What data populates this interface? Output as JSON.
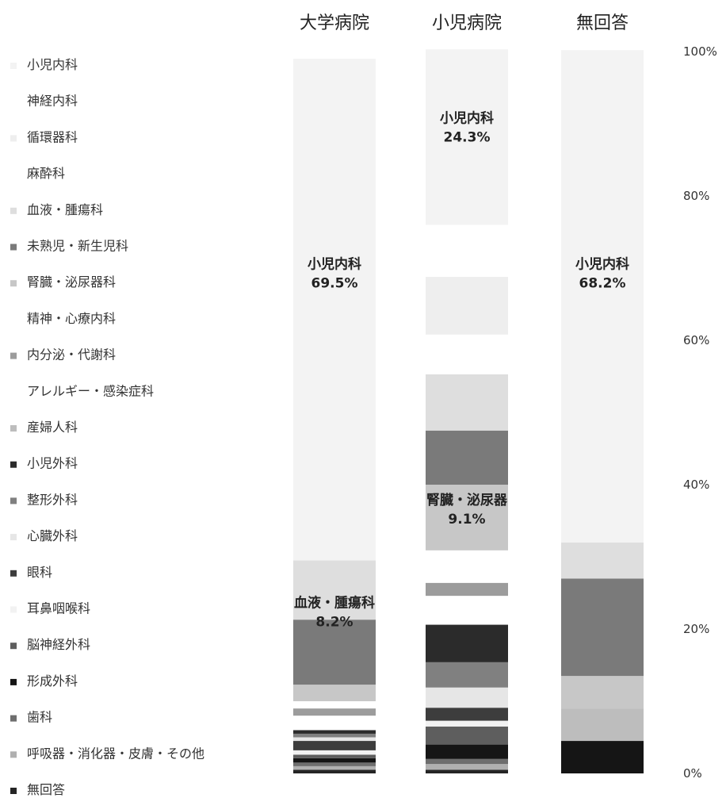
{
  "chart_data": {
    "type": "bar",
    "stacked": true,
    "categories": [
      "大学病院",
      "小児病院",
      "無回答"
    ],
    "series": [
      {
        "name": "小児内科",
        "color": "#f3f3f3",
        "values": [
          69.5,
          24.3,
          68.2
        ]
      },
      {
        "name": "神経内科",
        "color": "#ffffff",
        "values": [
          0,
          7.2,
          0
        ]
      },
      {
        "name": "循環器科",
        "color": "#eeeeee",
        "values": [
          0,
          8.0,
          0
        ]
      },
      {
        "name": "麻酔科",
        "color": "#ffffff",
        "values": [
          0,
          5.5,
          0
        ]
      },
      {
        "name": "血液・腫瘍科",
        "color": "#dedede",
        "values": [
          8.2,
          7.8,
          5.0
        ]
      },
      {
        "name": "未熟児・新生児科",
        "color": "#7a7a7a",
        "values": [
          9.0,
          7.5,
          13.5
        ]
      },
      {
        "name": "腎臓・泌尿器科",
        "color": "#c7c7c7",
        "values": [
          2.3,
          9.1,
          4.5
        ]
      },
      {
        "name": "精神・心療内科",
        "color": "#ffffff",
        "values": [
          1.0,
          4.5,
          0
        ]
      },
      {
        "name": "内分泌・代謝科",
        "color": "#9c9c9c",
        "values": [
          1.0,
          1.8,
          0
        ]
      },
      {
        "name": "アレルギー・感染症科",
        "color": "#ffffff",
        "values": [
          2.0,
          4.0,
          0
        ]
      },
      {
        "name": "産婦人科",
        "color": "#bdbdbd",
        "values": [
          0,
          0,
          4.5
        ]
      },
      {
        "name": "小児外科",
        "color": "#2b2b2b",
        "values": [
          0.5,
          5.2,
          0
        ]
      },
      {
        "name": "整形外科",
        "color": "#808080",
        "values": [
          0.5,
          3.5,
          0
        ]
      },
      {
        "name": "心臓外科",
        "color": "#e6e6e6",
        "values": [
          0.5,
          2.8,
          0
        ]
      },
      {
        "name": "眼科",
        "color": "#3d3d3d",
        "values": [
          1.3,
          1.8,
          0
        ]
      },
      {
        "name": "耳鼻咽喉科",
        "color": "#f2f2f2",
        "values": [
          0.6,
          0.8,
          0
        ]
      },
      {
        "name": "脳神経外科",
        "color": "#5e5e5e",
        "values": [
          0.5,
          2.5,
          0
        ]
      },
      {
        "name": "形成外科",
        "color": "#151515",
        "values": [
          0.6,
          2.0,
          4.5
        ]
      },
      {
        "name": "歯科",
        "color": "#6e6e6e",
        "values": [
          0.5,
          0.7,
          0
        ]
      },
      {
        "name": "呼吸器・消化器・皮膚・その他",
        "color": "#b0b0b0",
        "values": [
          0.5,
          0.8,
          0
        ]
      },
      {
        "name": "無回答",
        "color": "#252525",
        "values": [
          0.5,
          0.5,
          0
        ]
      }
    ],
    "legend_order": [
      "小児内科",
      "神経内科",
      "循環器科",
      "麻酔科",
      "血液・腫瘍科",
      "未熟児・新生児科",
      "腎臓・泌尿器科",
      "精神・心療内科",
      "内分泌・代謝科",
      "アレルギー・感染症科",
      "産婦人科",
      "小児外科",
      "整形外科",
      "心臓外科",
      "眼科",
      "耳鼻咽喉科",
      "脳神経外科",
      "形成外科",
      "歯科",
      "呼吸器・消化器・皮膚・その他",
      "無回答"
    ],
    "yticks": [
      "0%",
      "20%",
      "40%",
      "60%",
      "80%",
      "100%"
    ],
    "ylim": [
      0,
      100
    ],
    "legend_placement": "left",
    "annotations": [
      {
        "col": 0,
        "lines": [
          "小児内科",
          "69.5%"
        ],
        "at": 69.5
      },
      {
        "col": 0,
        "lines": [
          "血液・腫瘍科",
          "8.2%"
        ],
        "at": 22.6
      },
      {
        "col": 1,
        "lines": [
          "小児内科",
          "24.3%"
        ],
        "at": 89.7
      },
      {
        "col": 1,
        "lines": [
          "腎臓・泌尿器",
          "9.1%"
        ],
        "at": 36.8
      },
      {
        "col": 2,
        "lines": [
          "小児内科",
          "68.2%"
        ],
        "at": 69.5
      }
    ]
  }
}
